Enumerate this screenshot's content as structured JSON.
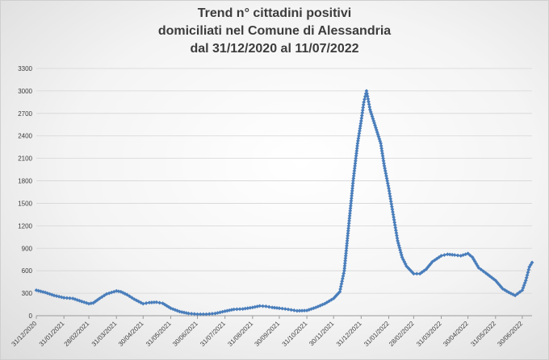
{
  "chart_data": {
    "type": "line",
    "title": [
      "Trend n° cittadini positivi",
      "domiciliati nel Comune di Alessandria",
      "dal 31/12/2020 al 11/07/2022"
    ],
    "xlabel": "",
    "ylabel": "",
    "x_range": [
      "2020-12-31",
      "2022-07-11"
    ],
    "ylim": [
      0,
      3300
    ],
    "y_ticks": [
      0,
      300,
      600,
      900,
      1200,
      1500,
      1800,
      2100,
      2400,
      2700,
      3000,
      3300
    ],
    "x_ticks": [
      {
        "date": "2020-12-31",
        "label": "31/12/2020"
      },
      {
        "date": "2021-01-31",
        "label": "31/01/2021"
      },
      {
        "date": "2021-02-28",
        "label": "28/02/2021"
      },
      {
        "date": "2021-03-31",
        "label": "31/03/2021"
      },
      {
        "date": "2021-04-30",
        "label": "30/04/2021"
      },
      {
        "date": "2021-05-31",
        "label": "31/05/2021"
      },
      {
        "date": "2021-06-30",
        "label": "30/06/2021"
      },
      {
        "date": "2021-07-31",
        "label": "31/07/2021"
      },
      {
        "date": "2021-08-31",
        "label": "31/08/2021"
      },
      {
        "date": "2021-09-30",
        "label": "30/09/2021"
      },
      {
        "date": "2021-10-31",
        "label": "31/10/2021"
      },
      {
        "date": "2021-11-30",
        "label": "30/11/2021"
      },
      {
        "date": "2021-12-31",
        "label": "31/12/2021"
      },
      {
        "date": "2022-01-31",
        "label": "31/01/2022"
      },
      {
        "date": "2022-02-28",
        "label": "28/02/2022"
      },
      {
        "date": "2022-03-31",
        "label": "31/03/2022"
      },
      {
        "date": "2022-04-30",
        "label": "30/04/2022"
      },
      {
        "date": "2022-05-31",
        "label": "31/05/2022"
      },
      {
        "date": "2022-06-30",
        "label": "30/06/2022"
      }
    ],
    "grid": "horizontal",
    "legend": "none",
    "series": [
      {
        "color": "#4a7ebb",
        "marker": "diamond",
        "points": [
          [
            "2020-12-31",
            340
          ],
          [
            "2021-01-10",
            310
          ],
          [
            "2021-01-20",
            270
          ],
          [
            "2021-01-31",
            240
          ],
          [
            "2021-02-10",
            230
          ],
          [
            "2021-02-20",
            190
          ],
          [
            "2021-02-28",
            160
          ],
          [
            "2021-03-05",
            170
          ],
          [
            "2021-03-12",
            230
          ],
          [
            "2021-03-20",
            290
          ],
          [
            "2021-03-31",
            330
          ],
          [
            "2021-04-05",
            320
          ],
          [
            "2021-04-12",
            280
          ],
          [
            "2021-04-20",
            220
          ],
          [
            "2021-04-30",
            160
          ],
          [
            "2021-05-07",
            175
          ],
          [
            "2021-05-15",
            180
          ],
          [
            "2021-05-22",
            165
          ],
          [
            "2021-05-31",
            100
          ],
          [
            "2021-06-10",
            55
          ],
          [
            "2021-06-20",
            30
          ],
          [
            "2021-06-30",
            20
          ],
          [
            "2021-07-10",
            20
          ],
          [
            "2021-07-20",
            30
          ],
          [
            "2021-07-31",
            60
          ],
          [
            "2021-08-10",
            85
          ],
          [
            "2021-08-20",
            90
          ],
          [
            "2021-08-31",
            110
          ],
          [
            "2021-09-08",
            130
          ],
          [
            "2021-09-15",
            125
          ],
          [
            "2021-09-22",
            110
          ],
          [
            "2021-09-30",
            100
          ],
          [
            "2021-10-10",
            85
          ],
          [
            "2021-10-20",
            65
          ],
          [
            "2021-10-31",
            70
          ],
          [
            "2021-11-10",
            110
          ],
          [
            "2021-11-20",
            160
          ],
          [
            "2021-11-30",
            230
          ],
          [
            "2021-12-07",
            320
          ],
          [
            "2021-12-12",
            600
          ],
          [
            "2021-12-17",
            1200
          ],
          [
            "2021-12-22",
            1800
          ],
          [
            "2021-12-27",
            2300
          ],
          [
            "2021-12-31",
            2600
          ],
          [
            "2022-01-03",
            2850
          ],
          [
            "2022-01-06",
            3000
          ],
          [
            "2022-01-10",
            2750
          ],
          [
            "2022-01-14",
            2600
          ],
          [
            "2022-01-18",
            2450
          ],
          [
            "2022-01-22",
            2300
          ],
          [
            "2022-01-26",
            2000
          ],
          [
            "2022-01-31",
            1700
          ],
          [
            "2022-02-05",
            1350
          ],
          [
            "2022-02-10",
            1000
          ],
          [
            "2022-02-15",
            780
          ],
          [
            "2022-02-20",
            660
          ],
          [
            "2022-02-28",
            560
          ],
          [
            "2022-03-07",
            560
          ],
          [
            "2022-03-14",
            620
          ],
          [
            "2022-03-21",
            720
          ],
          [
            "2022-03-31",
            800
          ],
          [
            "2022-04-07",
            820
          ],
          [
            "2022-04-15",
            810
          ],
          [
            "2022-04-22",
            800
          ],
          [
            "2022-04-30",
            830
          ],
          [
            "2022-05-05",
            780
          ],
          [
            "2022-05-12",
            640
          ],
          [
            "2022-05-20",
            570
          ],
          [
            "2022-05-31",
            470
          ],
          [
            "2022-06-08",
            360
          ],
          [
            "2022-06-15",
            310
          ],
          [
            "2022-06-22",
            270
          ],
          [
            "2022-06-30",
            340
          ],
          [
            "2022-07-04",
            470
          ],
          [
            "2022-07-08",
            650
          ],
          [
            "2022-07-11",
            710
          ]
        ]
      }
    ]
  }
}
